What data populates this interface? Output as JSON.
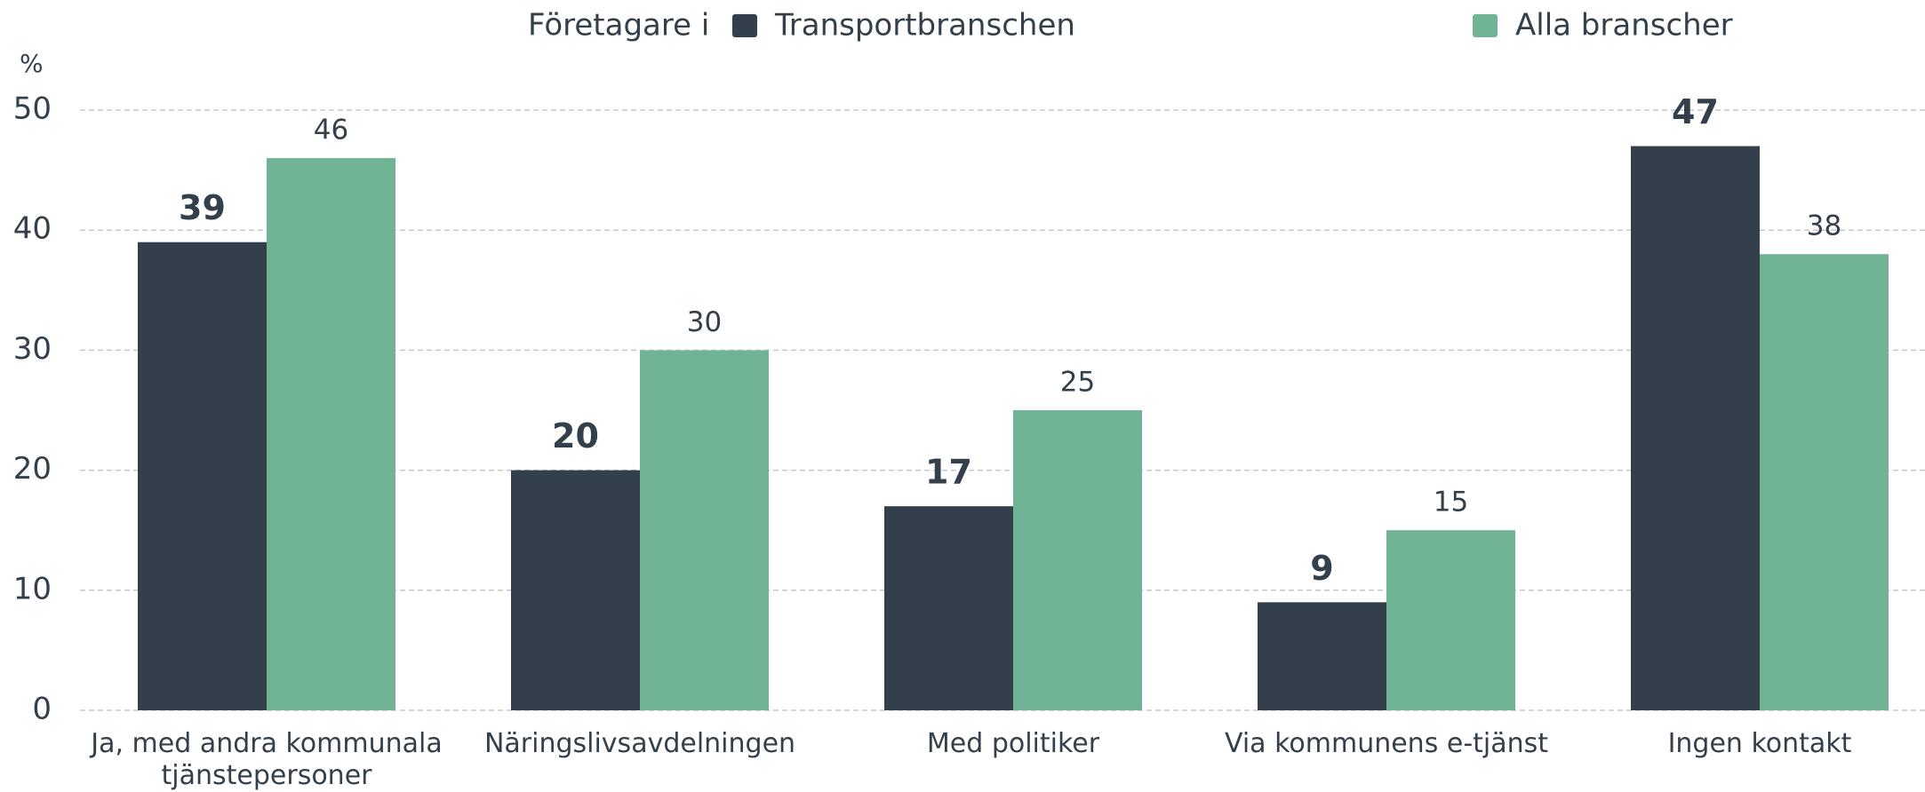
{
  "chart_data": {
    "type": "bar",
    "legend_title": "Företagare i",
    "y_axis_label": "%",
    "categories": [
      "Ja, med andra kommunala tjänstepersoner",
      "Näringslivsavdelningen",
      "Med politiker",
      "Via kommunens e-tjänst",
      "Ingen kontakt"
    ],
    "series": [
      {
        "name": "Transportbranschen",
        "color": "#333f4b",
        "values": [
          39,
          20,
          17,
          9,
          47
        ]
      },
      {
        "name": "Alla branscher",
        "color": "#70b395",
        "values": [
          46,
          30,
          25,
          15,
          38
        ]
      }
    ],
    "ylim": [
      0,
      50
    ],
    "yticks": [
      0,
      10,
      20,
      30,
      40,
      50
    ],
    "grid": true,
    "legend": "top"
  }
}
